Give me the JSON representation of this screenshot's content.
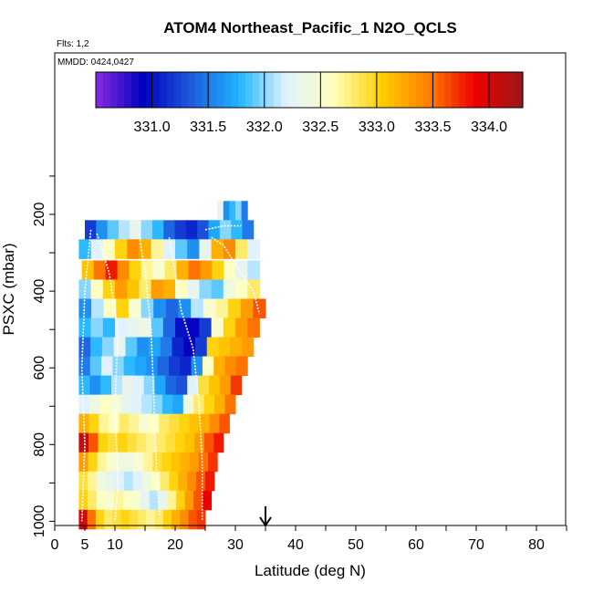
{
  "chart_data": {
    "type": "heatmap",
    "title": "ATOM4 Northeast_Pacific_1 N2O_QCLS",
    "flights_label": "Flts: 1,2",
    "dates_label": "MMDD: 0424,0427",
    "xlabel": "Latitude (deg N)",
    "ylabel": "PSXC (mbar)",
    "xlim": [
      0,
      85
    ],
    "ylim": [
      1020,
      50
    ],
    "x_ticks": [
      0,
      5,
      10,
      20,
      30,
      40,
      50,
      60,
      70,
      80
    ],
    "y_ticks": [
      200,
      400,
      600,
      800,
      1000
    ],
    "colorbar": {
      "ticks": [
        331.0,
        331.5,
        332.0,
        332.5,
        333.0,
        333.5,
        334.0
      ],
      "tick_labels": [
        "331.0",
        "331.5",
        "332.0",
        "332.5",
        "333.0",
        "333.5",
        "334.0"
      ],
      "range": [
        330.5,
        334.3
      ],
      "colors": [
        "#8a2be2",
        "#0000c0",
        "#1e5adc",
        "#1eb4ff",
        "#dff2ff",
        "#ffffc0",
        "#ffd000",
        "#ff8000",
        "#ee0000",
        "#9a1818"
      ]
    },
    "arrow_latitude": 35,
    "pressure_bins": [
      {
        "p": 190,
        "lat_range": [
          27,
          32
        ],
        "values": [
          332.3,
          331.6,
          331.8,
          332.0,
          331.5
        ]
      },
      {
        "p": 240,
        "lat_range": [
          5,
          33
        ],
        "values": [
          331.2,
          331.6,
          331.9,
          332.1,
          332.3,
          332.0,
          331.8,
          331.4,
          331.2,
          331.1,
          331.3,
          331.7,
          332.0,
          331.8,
          331.5
        ]
      },
      {
        "p": 290,
        "lat_range": [
          4,
          34
        ],
        "values": [
          331.8,
          332.2,
          332.6,
          333.0,
          333.4,
          333.2,
          332.7,
          332.2,
          331.9,
          331.6,
          332.3,
          333.2,
          333.4,
          332.8,
          332.2
        ]
      },
      {
        "p": 345,
        "lat_range": [
          4.5,
          34
        ],
        "values": [
          333.1,
          333.5,
          333.8,
          333.4,
          333.0,
          332.7,
          332.5,
          332.8,
          333.2,
          333.5,
          333.3,
          333.0,
          332.6,
          332.3,
          332.1
        ]
      },
      {
        "p": 395,
        "lat_range": [
          4,
          34
        ],
        "values": [
          332.0,
          332.6,
          333.0,
          333.3,
          333.1,
          332.8,
          333.3,
          333.2,
          332.6,
          332.3,
          332.0,
          331.9,
          332.4,
          332.6,
          332.8
        ]
      },
      {
        "p": 445,
        "lat_range": [
          4,
          35
        ],
        "values": [
          331.6,
          332.1,
          332.6,
          333.0,
          332.5,
          332.0,
          331.6,
          331.4,
          331.6,
          332.1,
          332.5,
          332.7,
          333.0,
          333.3,
          333.6
        ]
      },
      {
        "p": 495,
        "lat_range": [
          4,
          34
        ],
        "values": [
          331.8,
          332.0,
          331.8,
          332.2,
          332.3,
          332.4,
          331.9,
          331.4,
          331.0,
          330.9,
          331.2,
          332.5,
          333.0,
          333.3,
          333.5
        ]
      },
      {
        "p": 545,
        "lat_range": [
          4,
          33
        ],
        "values": [
          331.4,
          331.8,
          332.0,
          332.3,
          331.9,
          331.6,
          331.7,
          331.5,
          331.1,
          330.9,
          331.2,
          333.0,
          333.1,
          333.2,
          333.3
        ]
      },
      {
        "p": 595,
        "lat_range": [
          4,
          32
        ],
        "values": [
          331.5,
          331.9,
          332.2,
          332.0,
          331.8,
          331.7,
          331.6,
          331.4,
          331.2,
          331.1,
          331.6,
          332.6,
          333.2,
          333.4,
          333.5
        ]
      },
      {
        "p": 645,
        "lat_range": [
          4,
          31
        ],
        "values": [
          331.8,
          331.6,
          331.8,
          332.1,
          332.3,
          332.2,
          332.0,
          331.7,
          331.4,
          331.3,
          332.2,
          332.9,
          333.1,
          333.3,
          333.7
        ]
      },
      {
        "p": 695,
        "lat_range": [
          4,
          30
        ],
        "values": [
          332.2,
          332.4,
          332.6,
          332.5,
          332.3,
          332.2,
          332.1,
          332.0,
          331.8,
          331.7,
          332.4,
          332.8,
          333.0,
          333.2,
          333.5
        ]
      },
      {
        "p": 745,
        "lat_range": [
          4,
          29
        ],
        "values": [
          333.2,
          333.0,
          332.7,
          332.6,
          332.8,
          332.7,
          332.5,
          332.6,
          332.8,
          332.9,
          333.0,
          333.1,
          333.2,
          333.4,
          333.6
        ]
      },
      {
        "p": 795,
        "lat_range": [
          4,
          28
        ],
        "values": [
          334.1,
          333.6,
          333.0,
          332.9,
          333.0,
          332.9,
          332.8,
          332.7,
          332.8,
          332.9,
          333.0,
          333.1,
          333.3,
          333.6,
          333.8
        ]
      },
      {
        "p": 845,
        "lat_range": [
          4,
          27
        ],
        "values": [
          333.3,
          333.0,
          332.7,
          332.5,
          332.4,
          332.4,
          332.5,
          332.7,
          332.9,
          333.0,
          333.1,
          333.2,
          333.3,
          333.5,
          333.7
        ]
      },
      {
        "p": 895,
        "lat_range": [
          4,
          26.5
        ],
        "values": [
          332.9,
          332.7,
          332.4,
          332.3,
          332.2,
          332.1,
          332.2,
          332.4,
          332.6,
          332.8,
          333.0,
          333.2,
          333.4,
          333.6,
          333.8
        ]
      },
      {
        "p": 945,
        "lat_range": [
          4,
          26
        ],
        "values": [
          333.0,
          332.8,
          332.6,
          332.5,
          332.7,
          332.6,
          332.5,
          332.3,
          332.1,
          332.3,
          332.7,
          333.0,
          333.3,
          333.6,
          333.9
        ]
      },
      {
        "p": 995,
        "lat_range": [
          4,
          25
        ],
        "values": [
          334.0,
          333.5,
          333.0,
          332.8,
          332.9,
          333.0,
          332.9,
          332.8,
          332.7,
          332.8,
          333.0,
          333.2,
          333.4,
          333.6,
          333.7
        ]
      }
    ],
    "flight_tracks": [
      [
        [
          6,
          240
        ],
        [
          5,
          400
        ],
        [
          4.5,
          600
        ],
        [
          5,
          800
        ],
        [
          4.5,
          1000
        ]
      ],
      [
        [
          7,
          250
        ],
        [
          9,
          350
        ],
        [
          10.5,
          500
        ],
        [
          10,
          700
        ],
        [
          10.5,
          900
        ],
        [
          10,
          1000
        ]
      ],
      [
        [
          14,
          250
        ],
        [
          15,
          350
        ],
        [
          16,
          500
        ],
        [
          16.5,
          700
        ],
        [
          17,
          900
        ],
        [
          17.5,
          990
        ]
      ],
      [
        [
          19,
          260
        ],
        [
          20,
          350
        ],
        [
          21,
          450
        ],
        [
          23,
          550
        ],
        [
          24,
          700
        ],
        [
          24.5,
          850
        ],
        [
          24.5,
          1000
        ]
      ],
      [
        [
          26,
          260
        ],
        [
          28,
          280
        ],
        [
          30,
          330
        ],
        [
          33,
          400
        ],
        [
          34,
          460
        ]
      ],
      [
        [
          25,
          240
        ],
        [
          28,
          230
        ],
        [
          31,
          230
        ]
      ]
    ]
  }
}
